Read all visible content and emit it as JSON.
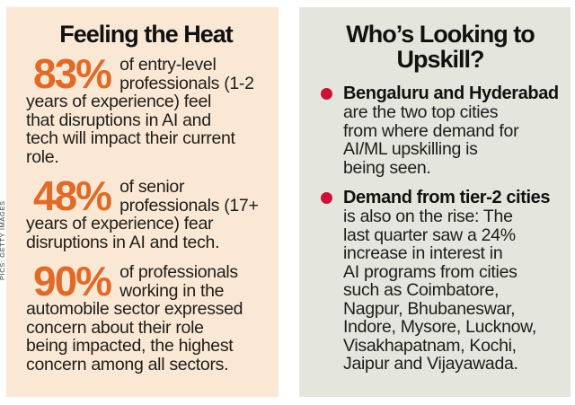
{
  "credit": {
    "text": "PICS: GETTY IMAGES"
  },
  "colors": {
    "left_panel_bg": "#fbe8d4",
    "right_panel_bg": "#e4e6de",
    "stat_accent": "#e06b28",
    "bullet_dot": "#cb1236",
    "text": "#1d1d1b"
  },
  "left_panel": {
    "title": "Feeling the Heat",
    "stats": [
      {
        "value": "83%",
        "text": "of entry-level\nprofessionals (1-2\nyears of experience) feel\nthat disruptions in AI and\ntech will impact their current\nrole."
      },
      {
        "value": "48%",
        "text": "of senior\nprofessionals (17+\nyears of experience) fear\ndisruptions in AI and tech."
      },
      {
        "value": "90%",
        "text": "of professionals\nworking in the\nautomobile sector expressed\nconcern about their role\nbeing impacted, the highest\nconcern among all sectors."
      }
    ]
  },
  "right_panel": {
    "title": "Who’s Looking to\nUpskill?",
    "bullets": [
      {
        "lead": "Bengaluru and Hyderabad",
        "text": "are the two top cities\nfrom where demand for\nAI/ML upskilling is\nbeing seen."
      },
      {
        "lead": "Demand from tier-2 cities",
        "text": "is also on the rise: The\nlast quarter saw a 24%\nincrease in interest in\nAI programs from cities\nsuch as Coimbatore,\nNagpur, Bhubaneswar,\nIndore, Mysore, Lucknow,\nVisakhapatnam, Kochi,\nJaipur and Vijayawada."
      }
    ]
  }
}
